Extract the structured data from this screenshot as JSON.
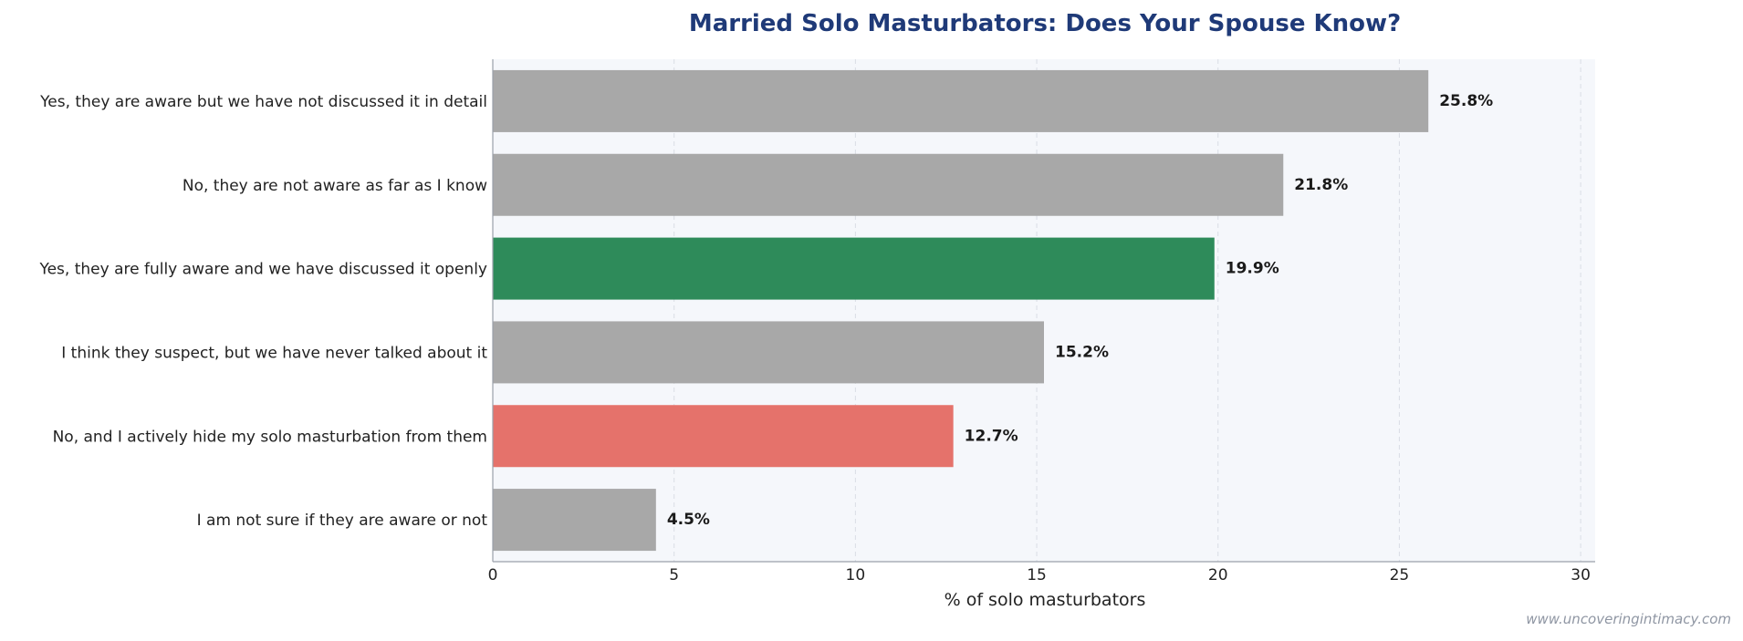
{
  "chart_data": {
    "type": "bar",
    "orientation": "horizontal",
    "title": "Married Solo Masturbators: Does Your Spouse Know?",
    "xlabel": "% of solo masturbators",
    "ylabel": "",
    "xlim": [
      0,
      30.4
    ],
    "xticks": [
      0,
      5,
      10,
      15,
      20,
      25,
      30
    ],
    "grid": true,
    "categories": [
      "Yes, they are aware but we have not discussed it in detail",
      "No, they are not aware as far as I know",
      "Yes, they are fully aware and we have discussed it openly",
      "I think they suspect, but we have never talked about it",
      "No, and I actively hide my solo masturbation from them",
      "I am not sure if they are aware or not"
    ],
    "values": [
      25.8,
      21.8,
      19.9,
      15.2,
      12.7,
      4.5
    ],
    "value_labels": [
      "25.8%",
      "21.8%",
      "19.9%",
      "15.2%",
      "12.7%",
      "4.5%"
    ],
    "bar_colors": [
      "#a8a8a8",
      "#a8a8a8",
      "#2e8b5a",
      "#a8a8a8",
      "#e5726b",
      "#a8a8a8"
    ],
    "colors": {
      "title": "#1f3a78",
      "plot_background": "#f5f7fb",
      "grid": "#d9dde5",
      "axis": "#9aa0aa"
    }
  },
  "watermark": "www.uncoveringintimacy.com"
}
